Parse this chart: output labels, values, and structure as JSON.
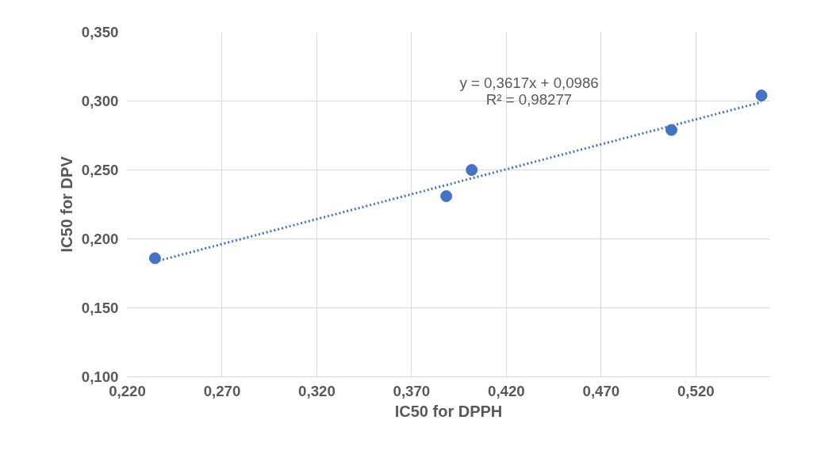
{
  "chart_data": {
    "type": "scatter",
    "xlabel": "IC50 for DPPH",
    "ylabel": "IC50 for DPV",
    "xlim": [
      0.22,
      0.559
    ],
    "ylim": [
      0.1,
      0.35
    ],
    "xticks": [
      {
        "value": 0.22,
        "label": "0,220"
      },
      {
        "value": 0.27,
        "label": "0,270"
      },
      {
        "value": 0.32,
        "label": "0,320"
      },
      {
        "value": 0.37,
        "label": "0,370"
      },
      {
        "value": 0.42,
        "label": "0,420"
      },
      {
        "value": 0.47,
        "label": "0,470"
      },
      {
        "value": 0.52,
        "label": "0,520"
      }
    ],
    "yticks": [
      {
        "value": 0.1,
        "label": "0,100"
      },
      {
        "value": 0.15,
        "label": "0,150"
      },
      {
        "value": 0.2,
        "label": "0,200"
      },
      {
        "value": 0.25,
        "label": "0,250"
      },
      {
        "value": 0.3,
        "label": "0,300"
      },
      {
        "value": 0.35,
        "label": "0,350"
      }
    ],
    "grid": true,
    "marker": "circle",
    "series": [
      {
        "color": "#4472c4",
        "x": [
          0.2346,
          0.3883,
          0.4017,
          0.5071,
          0.5546
        ],
        "values": [
          0.186,
          0.231,
          0.25,
          0.279,
          0.304
        ]
      },
      {
        "type": "line",
        "color": "#4472c4",
        "line_style": "dotted",
        "marker": "none",
        "x": [
          0.2346,
          0.5546
        ],
        "values": [
          0.1835,
          0.2992
        ]
      }
    ],
    "annotations": [
      "y = 0,3617x + 0,0986",
      "R² = 0,98277"
    ]
  }
}
